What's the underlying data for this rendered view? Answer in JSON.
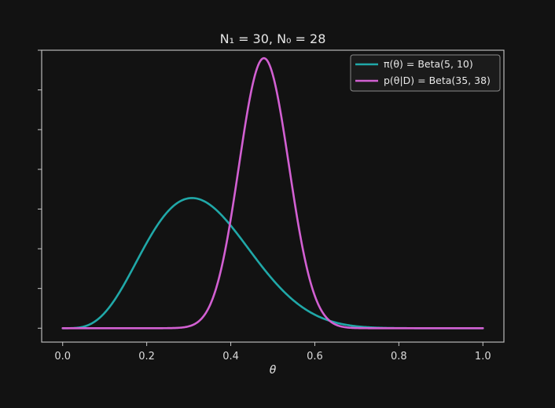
{
  "chart_data": {
    "type": "line",
    "title": "N₁ = 30,  N₀ = 28",
    "xlabel": "θ",
    "ylabel": "",
    "xlim": [
      -0.05,
      1.05
    ],
    "ylim": [
      -0.35,
      7.0
    ],
    "x_ticks": [
      0.0,
      0.2,
      0.4,
      0.6,
      0.8,
      1.0
    ],
    "x_tick_labels": [
      "0.0",
      "0.2",
      "0.4",
      "0.6",
      "0.8",
      "1.0"
    ],
    "y_ticks": [
      0,
      1,
      2,
      3,
      4,
      5,
      6,
      7
    ],
    "y_tick_labels": [
      "",
      "",
      "",
      "",
      "",
      "",
      "",
      ""
    ],
    "legend_position": "top-right",
    "series": [
      {
        "name": "π(θ) = Beta(5, 10)",
        "distribution": "beta",
        "alpha": 5,
        "beta": 10,
        "color": "#20a8a8"
      },
      {
        "name": "p(θ|D) = Beta(35, 38)",
        "distribution": "beta",
        "alpha": 35,
        "beta": 38,
        "color": "#d260d2"
      }
    ]
  }
}
